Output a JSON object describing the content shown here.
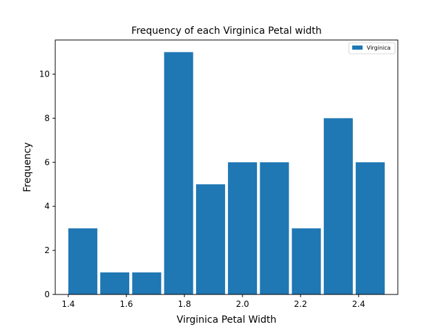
{
  "chart_data": {
    "type": "bar",
    "title": "Frequency of each Virginica Petal width",
    "xlabel": "Virginica Petal Width",
    "ylabel": "Frequency",
    "series": [
      {
        "name": "Virginica",
        "color": "#1f77b4",
        "bins": [
          {
            "x0": 1.4,
            "x1": 1.5,
            "value": 3
          },
          {
            "x0": 1.51,
            "x1": 1.61,
            "value": 1
          },
          {
            "x0": 1.62,
            "x1": 1.72,
            "value": 1
          },
          {
            "x0": 1.73,
            "x1": 1.83,
            "value": 11
          },
          {
            "x0": 1.84,
            "x1": 1.94,
            "value": 5
          },
          {
            "x0": 1.95,
            "x1": 2.05,
            "value": 6
          },
          {
            "x0": 2.06,
            "x1": 2.16,
            "value": 6
          },
          {
            "x0": 2.17,
            "x1": 2.27,
            "value": 3
          },
          {
            "x0": 2.28,
            "x1": 2.38,
            "value": 8
          },
          {
            "x0": 2.39,
            "x1": 2.49,
            "value": 6
          }
        ]
      }
    ],
    "xlim": [
      1.355,
      2.535
    ],
    "ylim": [
      0,
      11.55
    ],
    "xticks": [
      1.4,
      1.6,
      1.8,
      2.0,
      2.2,
      2.4
    ],
    "xtick_labels": [
      "1.4",
      "1.6",
      "1.8",
      "2.0",
      "2.2",
      "2.4"
    ],
    "yticks": [
      0,
      2,
      4,
      6,
      8,
      10
    ],
    "ytick_labels": [
      "0",
      "2",
      "4",
      "6",
      "8",
      "10"
    ],
    "grid": false,
    "legend_position": "top-right"
  }
}
